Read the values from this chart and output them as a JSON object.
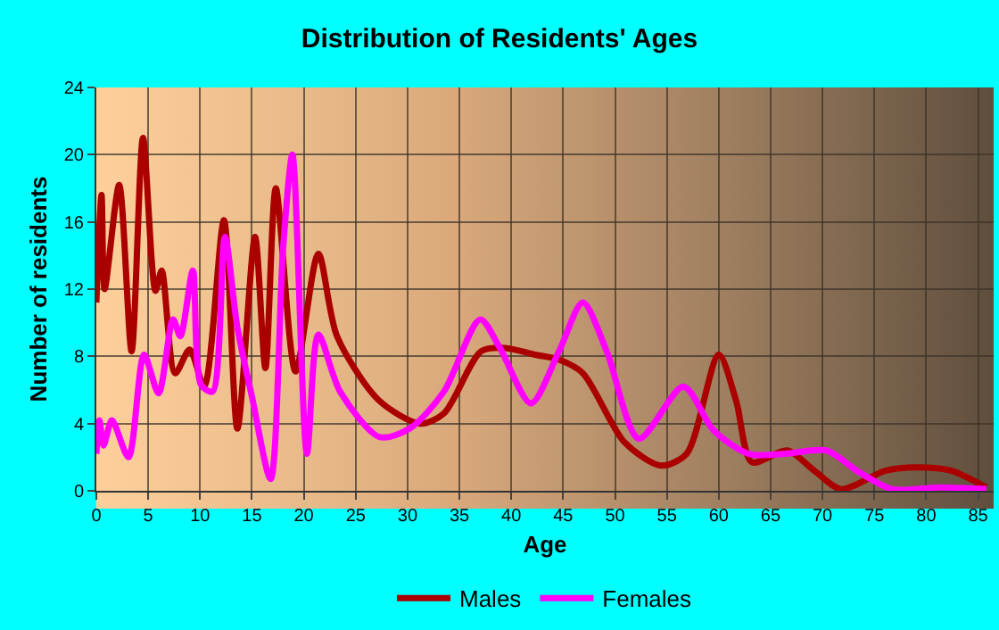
{
  "chart_data": {
    "type": "line",
    "title": "Distribution of Residents' Ages",
    "xlabel": "Age",
    "ylabel": "Number of residents",
    "xlim": [
      0,
      86.5
    ],
    "xticks": [
      0,
      5,
      10,
      15,
      20,
      25,
      30,
      35,
      40,
      45,
      50,
      55,
      60,
      65,
      70,
      75,
      80,
      85
    ],
    "ylim": [
      0,
      24
    ],
    "yticks": [
      0,
      4,
      8,
      12,
      16,
      20,
      24
    ],
    "grid": true,
    "legend": "bottom",
    "marker": "none",
    "line_style": "solid",
    "series": [
      {
        "name": "Males",
        "color": "#aa0000",
        "x": [
          0,
          0.5,
          0.8,
          2.2,
          3.4,
          4.5,
          5.7,
          6.3,
          7.6,
          9,
          10.4,
          12.3,
          13.6,
          15.3,
          16.3,
          17.3,
          19.2,
          21.4,
          23.2,
          27.2,
          31.2,
          33.5,
          37.1,
          39.4,
          42.3,
          44.6,
          46.9,
          50.9,
          54.4,
          56.9,
          60,
          61.7,
          63.2,
          66.6,
          69.2,
          71.8,
          76.1,
          79.2,
          82.4,
          85.8
        ],
        "values": [
          11.2,
          17.6,
          12,
          18.2,
          8.3,
          21,
          11.9,
          13.1,
          7,
          8.4,
          6.2,
          16.1,
          3.7,
          15.1,
          7.3,
          18,
          7.1,
          14.1,
          9.2,
          5.4,
          4,
          4.6,
          8.3,
          8.5,
          8.1,
          7.8,
          7,
          2.9,
          1.5,
          2.2,
          8.1,
          5.3,
          1.7,
          2.4,
          1.2,
          0.1,
          1.2,
          1.4,
          1.2,
          0.2
        ]
      },
      {
        "name": "Females",
        "color": "#ff00ff",
        "x": [
          0,
          0.3,
          0.7,
          1.5,
          3.1,
          4.6,
          6,
          7.4,
          8.1,
          9.3,
          10.1,
          11.2,
          12.4,
          13.6,
          15,
          16.8,
          18,
          18.9,
          20.3,
          21.4,
          23.5,
          27.3,
          30.2,
          33.5,
          37,
          38.9,
          41.9,
          44.6,
          46.9,
          49.2,
          52.3,
          56.6,
          59.5,
          62.9,
          66.4,
          70.4,
          73.3,
          76.7,
          81.3,
          85.8
        ],
        "values": [
          2.2,
          4.2,
          2.7,
          4.2,
          2,
          8.1,
          5.8,
          10.2,
          9.2,
          13.1,
          6.3,
          5.9,
          15.1,
          9.7,
          5.6,
          0.7,
          14.4,
          20,
          2.2,
          9.3,
          5.9,
          3.2,
          3.7,
          5.9,
          10.2,
          8.5,
          5.2,
          8.3,
          11.2,
          8.3,
          3.1,
          6.2,
          3.6,
          2.2,
          2.2,
          2.4,
          1.2,
          0.1,
          0.2,
          0.1
        ]
      }
    ]
  }
}
